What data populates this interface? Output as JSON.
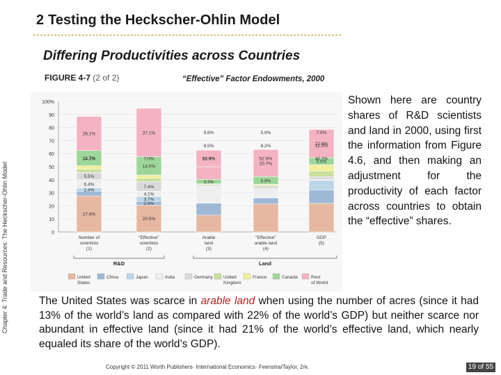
{
  "slide": {
    "section_number": "2",
    "section_title": "Testing the Heckscher-Ohlin Model",
    "subtitle": "Differing Productivities across Countries",
    "figure_label": "FIGURE 4-7",
    "figure_part": "(2 of 2)",
    "figure_title": "“Effective” Factor Endowments, 2000",
    "side_label": "Chapter 4: Trade and Resources: The Heckscher-Ohlin Model",
    "right_paragraph": "Shown here are country shares of R&D scientists and land in 2000, using first the information from Figure 4.6, and then making an adjustment for the productivity of each factor across countries to obtain the “effective” shares.",
    "bottom_paragraph_before": "The United States was scarce in ",
    "bottom_paragraph_highlight": "arable land",
    "bottom_paragraph_after": " when using the number of acres (since it had 13% of the world’s land as compared with 22% of the world’s GDP) but neither scarce nor abundant in effective land (since it had 21% of the world’s effective land, which nearly equaled its share of the world’s GDP).",
    "footer": "Copyright © 2011 Worth Publishers· International Economics· Feenstra/Taylor, 2/e.",
    "page_current": "19",
    "page_of": "of",
    "page_total": "55"
  },
  "chart_data": {
    "type": "bar",
    "stacked": true,
    "ylim": [
      0,
      100
    ],
    "y_ticks": [
      "0",
      "10",
      "20",
      "30",
      "40",
      "50",
      "60",
      "70",
      "80",
      "90",
      "100%"
    ],
    "categories": [
      "Number of scientists (1)",
      "“Effective” scientists (2)",
      "Arable land (3)",
      "“Effective” arable land (4)",
      "GDP (5)"
    ],
    "category_lines": [
      [
        "Number of",
        "scientists",
        "(1)"
      ],
      [
        "“Effective”",
        "scientists",
        "(2)"
      ],
      [
        "Arable",
        "land",
        "(3)"
      ],
      [
        "“Effective”",
        "arable land",
        "(4)"
      ],
      [
        "GDP",
        "(5)"
      ]
    ],
    "groups": [
      {
        "label": "R&D",
        "from": 0,
        "to": 1
      },
      {
        "label": "Land",
        "from": 2,
        "to": 4
      }
    ],
    "series": [
      {
        "name": "United States",
        "color": "#e6b8a2",
        "values": [
          27.6,
          20.5,
          12.9,
          21.4,
          21.9
        ],
        "labels": [
          "27.6%",
          "20.5%",
          "",
          "",
          ""
        ]
      },
      {
        "name": "China",
        "color": "#9fb8d6",
        "values": [
          3.6,
          2.9,
          9.2,
          4.7,
          10.3
        ],
        "labels": [
          "",
          "2.9%",
          "",
          "",
          ""
        ]
      },
      {
        "name": "Japan",
        "color": "#bcd6e8",
        "values": [
          2.4,
          3.7,
          0.3,
          0.4,
          7.4
        ],
        "labels": [
          "2.4%",
          "3.7%",
          "",
          "",
          ""
        ]
      },
      {
        "name": "India",
        "color": "#eeeeee",
        "values": [
          6.4,
          4.1,
          12.6,
          6.7,
          0.5
        ],
        "labels": [
          "6.4%",
          "4.1%",
          "",
          "",
          ""
        ]
      },
      {
        "name": "Germany",
        "color": "#d9d9d9",
        "values": [
          5.5,
          7.4,
          1.1,
          1.9,
          2.3
        ],
        "labels": [
          "5.5%",
          "7.4%",
          "",
          "",
          ""
        ]
      },
      {
        "name": "United Kingdom",
        "color": "#c9df9d",
        "values": [
          2.5,
          2.5,
          0.5,
          0.7,
          4.3
        ],
        "labels": [
          "",
          "",
          "",
          "",
          ""
        ]
      },
      {
        "name": "France",
        "color": "#f2ee9c",
        "values": [
          2.7,
          2.5,
          0.3,
          0.7,
          4.7
        ],
        "labels": [
          "",
          "",
          "",
          "",
          ""
        ]
      },
      {
        "name": "Canada",
        "color": "#9ed69a",
        "values": [
          11.7,
          14.0,
          3.3,
          5.9,
          5.5
        ],
        "labels": [
          "11.7%",
          "14.0%",
          "3.3%",
          "5.9%",
          "5.5%"
        ]
      },
      {
        "name": "Rest of World",
        "color": "#f3b3c2",
        "values": [
          26.1,
          37.1,
          9.8,
          20.7,
          21.6
        ],
        "labels": [
          "26.1%",
          "37.1%",
          "",
          "20.7%",
          "21.6%"
        ]
      },
      {
        "name": "",
        "color": "#f3b3c2",
        "values": [
          0,
          0,
          12.6,
          0,
          0
        ],
        "labels": [
          "",
          "",
          "12.6%",
          "",
          ""
        ]
      }
    ],
    "segment_labels_extra": [
      {
        "category": 0,
        "text": "14.1%"
      },
      {
        "category": 1,
        "text": "7.0%"
      },
      {
        "category": 2,
        "text": "59.9%"
      },
      {
        "category": 2,
        "text": "8.5%"
      },
      {
        "category": 2,
        "text": "9.8%"
      },
      {
        "category": 3,
        "text": "52.5%"
      },
      {
        "category": 3,
        "text": "8.2%"
      },
      {
        "category": 3,
        "text": "5.9%"
      },
      {
        "category": 4,
        "text": "40.7%"
      },
      {
        "category": 4,
        "text": "11.2%"
      },
      {
        "category": 4,
        "text": "7.9%"
      }
    ]
  }
}
